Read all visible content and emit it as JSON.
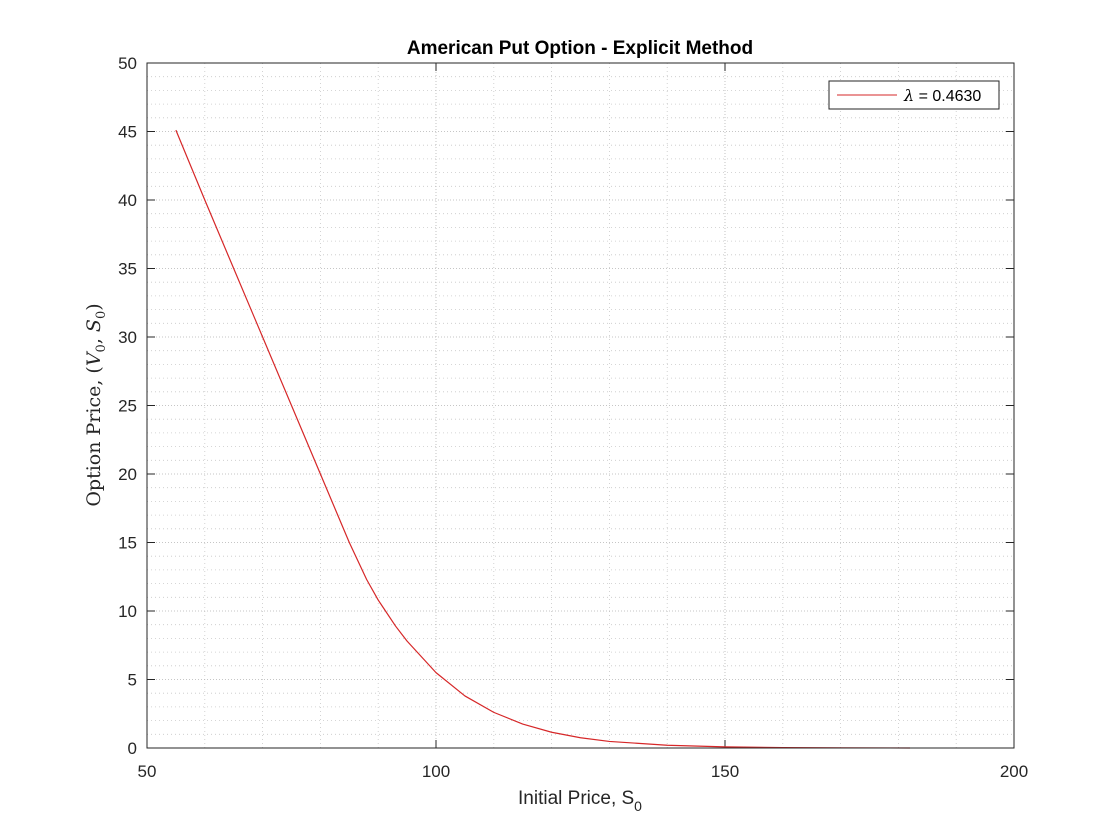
{
  "chart_data": {
    "type": "line",
    "title": "American Put Option - Explicit Method",
    "xlabel": "Initial Price, S",
    "xlabel_sub": "0",
    "ylabel_parts": {
      "prefix": "Option Price, (",
      "v": "V",
      "v_sub": "0",
      "sep": ", ",
      "s": "S",
      "s_sub": "0",
      "suffix": ")"
    },
    "xlim": [
      50,
      200
    ],
    "ylim": [
      0,
      50
    ],
    "xticks": [
      50,
      100,
      150,
      200
    ],
    "yticks": [
      0,
      5,
      10,
      15,
      20,
      25,
      30,
      35,
      40,
      45,
      50
    ],
    "grid": true,
    "minor_grid": true,
    "legend_position": "top-right",
    "series": [
      {
        "name_symbol": "λ",
        "name_value": " = 0.4630",
        "color": "#d62728",
        "x": [
          55,
          60,
          65,
          70,
          75,
          80,
          83,
          85,
          88,
          90,
          93,
          95,
          100,
          105,
          110,
          115,
          120,
          125,
          130,
          140,
          150,
          160,
          170,
          182
        ],
        "y": [
          45.1,
          40.0,
          35.0,
          30.0,
          25.0,
          20.0,
          17.0,
          15.0,
          12.3,
          10.8,
          8.9,
          7.8,
          5.5,
          3.8,
          2.6,
          1.75,
          1.15,
          0.75,
          0.48,
          0.2,
          0.08,
          0.03,
          0.01,
          0.0
        ]
      }
    ]
  }
}
